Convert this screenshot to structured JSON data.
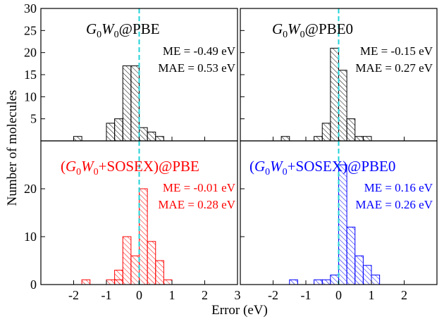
{
  "figure": {
    "xlabel": "Error (eV)",
    "ylabel": "Number of molecules"
  },
  "chart_data": [
    {
      "type": "bar",
      "title": "G0W0@PBE",
      "title_parts": [
        {
          "t": "G",
          "s": "it"
        },
        {
          "t": "0",
          "s": "sub"
        },
        {
          "t": "W",
          "s": "it"
        },
        {
          "t": "0",
          "s": "sub"
        },
        {
          "t": "@PBE",
          "s": "n"
        }
      ],
      "annotation_lines": [
        "ME = -0.49 eV",
        "MAE = 0.53 eV"
      ],
      "color": "#000000",
      "xlim": [
        -3,
        3
      ],
      "ylim": [
        0,
        30
      ],
      "yticks": [
        5,
        10,
        15,
        20,
        25,
        30
      ],
      "xticks": [
        -2,
        -1,
        0,
        1,
        2,
        3
      ],
      "show_xticklabels": false,
      "bin_width": 0.25,
      "bins": [
        {
          "x": -2.0,
          "count": 1
        },
        {
          "x": -1.0,
          "count": 4
        },
        {
          "x": -0.75,
          "count": 5
        },
        {
          "x": -0.5,
          "count": 17
        },
        {
          "x": -0.25,
          "count": 17
        },
        {
          "x": 0.0,
          "count": 3
        },
        {
          "x": 0.25,
          "count": 2
        },
        {
          "x": 0.5,
          "count": 1
        }
      ],
      "reference_line_x": 0
    },
    {
      "type": "bar",
      "title": "G0W0@PBE0",
      "title_parts": [
        {
          "t": "G",
          "s": "it"
        },
        {
          "t": "0",
          "s": "sub"
        },
        {
          "t": "W",
          "s": "it"
        },
        {
          "t": "0",
          "s": "sub"
        },
        {
          "t": "@PBE0",
          "s": "n"
        }
      ],
      "annotation_lines": [
        "ME = -0.15 eV",
        "MAE = 0.27 eV"
      ],
      "color": "#000000",
      "xlim": [
        -3,
        3
      ],
      "ylim": [
        0,
        30
      ],
      "yticks": [
        5,
        10,
        15,
        20,
        25,
        30
      ],
      "xticks": [
        -2,
        -1,
        0,
        1,
        2,
        3
      ],
      "show_xticklabels": false,
      "bin_width": 0.25,
      "bins": [
        {
          "x": -1.75,
          "count": 1
        },
        {
          "x": -0.75,
          "count": 1
        },
        {
          "x": -0.5,
          "count": 4
        },
        {
          "x": -0.25,
          "count": 21
        },
        {
          "x": 0.0,
          "count": 16
        },
        {
          "x": 0.25,
          "count": 5
        },
        {
          "x": 0.5,
          "count": 1
        },
        {
          "x": 0.75,
          "count": 1
        }
      ],
      "reference_line_x": 0
    },
    {
      "type": "bar",
      "title": "(G0W0+SOSEX)@PBE",
      "title_parts": [
        {
          "t": "(",
          "s": "n"
        },
        {
          "t": "G",
          "s": "it"
        },
        {
          "t": "0",
          "s": "sub"
        },
        {
          "t": "W",
          "s": "it"
        },
        {
          "t": "0",
          "s": "sub"
        },
        {
          "t": "+SOSEX)@PBE",
          "s": "n"
        }
      ],
      "annotation_lines": [
        "ME = -0.01 eV",
        "MAE = 0.28 eV"
      ],
      "color": "#ff0000",
      "xlim": [
        -3,
        3
      ],
      "ylim": [
        0,
        30
      ],
      "yticks": [
        0,
        10,
        20
      ],
      "xticks": [
        -2,
        -1,
        0,
        1,
        2,
        3
      ],
      "xticklabels": [
        "-2",
        "-1",
        "0",
        "1",
        "2",
        "3"
      ],
      "show_xticklabels": true,
      "bin_width": 0.25,
      "bins": [
        {
          "x": -1.75,
          "count": 1
        },
        {
          "x": -0.75,
          "count": 1
        },
        {
          "x": -1.0,
          "count": 1
        },
        {
          "x": -0.75,
          "count": 3
        },
        {
          "x": -0.5,
          "count": 10
        },
        {
          "x": -0.25,
          "count": 6
        },
        {
          "x": 0.0,
          "count": 20
        },
        {
          "x": 0.25,
          "count": 9
        },
        {
          "x": 0.5,
          "count": 5
        },
        {
          "x": 0.75,
          "count": 1
        }
      ],
      "reference_line_x": 0
    },
    {
      "type": "bar",
      "title": "(G0W0+SOSEX)@PBE0",
      "title_parts": [
        {
          "t": "(",
          "s": "n"
        },
        {
          "t": "G",
          "s": "it"
        },
        {
          "t": "0",
          "s": "sub"
        },
        {
          "t": "W",
          "s": "it"
        },
        {
          "t": "0",
          "s": "sub"
        },
        {
          "t": "+SOSEX)@PBE0",
          "s": "n"
        }
      ],
      "annotation_lines": [
        "ME = 0.16 eV",
        "MAE = 0.26 eV"
      ],
      "color": "#0000ff",
      "xlim": [
        -3,
        3
      ],
      "ylim": [
        0,
        30
      ],
      "yticks": [
        0,
        10,
        20
      ],
      "xticks": [
        -2,
        -1,
        0,
        1,
        2,
        3
      ],
      "xticklabels": [
        "-2",
        "-1",
        "0",
        "1",
        "2",
        "3"
      ],
      "show_xticklabels": true,
      "bin_width": 0.25,
      "bins": [
        {
          "x": -1.5,
          "count": 1
        },
        {
          "x": -0.75,
          "count": 1
        },
        {
          "x": -0.5,
          "count": 1
        },
        {
          "x": -0.25,
          "count": 2
        },
        {
          "x": 0.0,
          "count": 25
        },
        {
          "x": 0.25,
          "count": 12
        },
        {
          "x": 0.5,
          "count": 6
        },
        {
          "x": 0.75,
          "count": 4
        },
        {
          "x": 1.0,
          "count": 2
        }
      ],
      "reference_line_x": 0
    }
  ]
}
